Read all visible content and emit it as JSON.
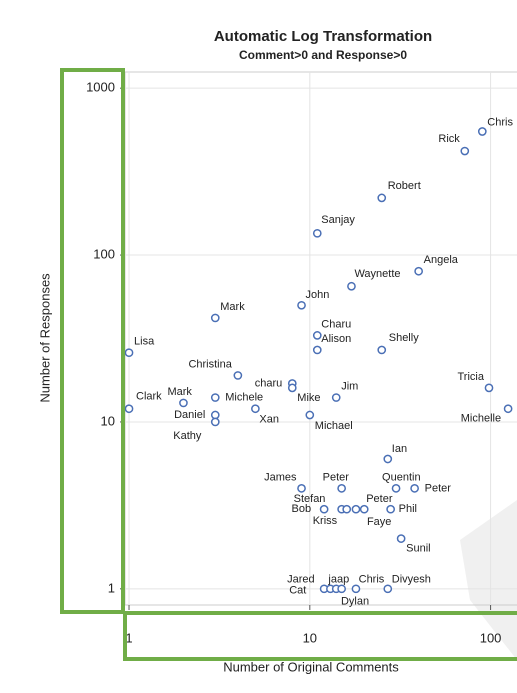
{
  "chart_data": {
    "type": "scatter",
    "title": "Automatic Log Transformation",
    "subtitle": "Comment>0 and Response>0",
    "xlabel": "Number of Original Comments",
    "ylabel": "Number of Responses",
    "color": "#4a6fb5",
    "xlog": true,
    "ylog": true,
    "grid": true,
    "xlim": [
      0.95,
      140
    ],
    "ylim": [
      0.8,
      1250
    ],
    "xticks": [
      1,
      10,
      100
    ],
    "yticks": [
      1,
      10,
      100,
      1000
    ],
    "x": [
      90,
      72,
      25,
      11,
      40,
      17,
      9,
      3,
      11,
      11,
      25,
      1,
      4,
      8,
      8,
      98,
      14,
      2,
      1,
      3,
      125,
      3,
      3,
      5,
      10,
      27,
      9,
      15,
      30,
      38,
      12,
      15,
      16,
      20,
      18,
      28,
      32,
      12,
      13,
      14,
      15,
      18,
      27
    ],
    "y": [
      550,
      420,
      220,
      135,
      80,
      65,
      50,
      42,
      33,
      27,
      27,
      26,
      19,
      17,
      16,
      16,
      14,
      13,
      12,
      14,
      12,
      11,
      10,
      12,
      11,
      6,
      4,
      4,
      4,
      4,
      3,
      3,
      3,
      3,
      3,
      3,
      2,
      1,
      1,
      1,
      1,
      1,
      1
    ],
    "labels": [
      "Chris",
      "Rick",
      "Robert",
      "Sanjay",
      "Angela",
      "Waynette",
      "John",
      "Mark",
      "Charu",
      "Alison",
      "Shelly",
      "Lisa",
      "Christina",
      "charu",
      "Mike",
      "Tricia",
      "Jim",
      "Mark",
      "Clark",
      "Michele",
      "Michelle",
      "Daniel",
      "Kathy",
      "Xan",
      "Michael",
      "Ian",
      "James",
      "Peter",
      "Quentin",
      "Peter",
      "Bob",
      "Stefan",
      "Kriss",
      "Peter",
      "Faye",
      "Phil",
      "Sunil",
      "Jared",
      "jaap",
      "Cat",
      "Chris",
      "Dylan",
      "Divyesh"
    ]
  }
}
